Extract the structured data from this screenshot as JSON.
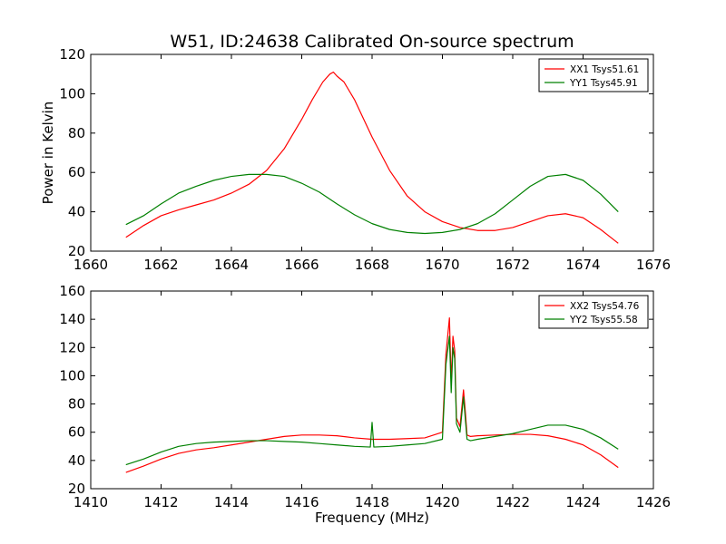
{
  "chart_data": [
    {
      "type": "line",
      "title": "W51, ID:24638 Calibrated On-source spectrum",
      "xlabel": "",
      "ylabel": "Power in Kelvin",
      "xlim": [
        1660,
        1676
      ],
      "ylim": [
        20,
        120
      ],
      "xticks": [
        1660,
        1662,
        1664,
        1666,
        1668,
        1670,
        1672,
        1674,
        1676
      ],
      "yticks": [
        20,
        40,
        60,
        80,
        100,
        120
      ],
      "legend_position": "top-right",
      "grid": false,
      "series": [
        {
          "name": "XX1 Tsys51.61",
          "color": "#ff0000",
          "x": [
            1661,
            1661.5,
            1662,
            1662.5,
            1663,
            1663.5,
            1664,
            1664.5,
            1665,
            1665.5,
            1666,
            1666.3,
            1666.6,
            1666.8,
            1666.9,
            1667,
            1667.2,
            1667.5,
            1668,
            1668.5,
            1669,
            1669.5,
            1670,
            1670.5,
            1671,
            1671.5,
            1672,
            1672.5,
            1673,
            1673.5,
            1674,
            1674.5,
            1675
          ],
          "y": [
            27,
            33,
            38,
            41,
            43.5,
            46,
            49.5,
            54,
            61,
            72,
            87,
            97,
            106,
            110,
            111,
            109,
            106,
            97,
            78,
            61,
            48,
            40,
            35,
            32,
            30.5,
            30.5,
            32,
            35,
            38,
            39,
            37,
            31,
            24
          ]
        },
        {
          "name": "YY1 Tsys45.91",
          "color": "#008000",
          "x": [
            1661,
            1661.5,
            1662,
            1662.5,
            1663,
            1663.5,
            1664,
            1664.5,
            1665,
            1665.5,
            1666,
            1666.5,
            1667,
            1667.5,
            1668,
            1668.5,
            1669,
            1669.5,
            1670,
            1670.5,
            1671,
            1671.5,
            1672,
            1672.5,
            1673,
            1673.5,
            1674,
            1674.5,
            1675
          ],
          "y": [
            33.5,
            38,
            44,
            49.5,
            53,
            56,
            58,
            59,
            59,
            58,
            54.5,
            50,
            44,
            38.5,
            34,
            31,
            29.5,
            29,
            29.5,
            31,
            34,
            39,
            46,
            53,
            58,
            59,
            56,
            49,
            40
          ]
        }
      ]
    },
    {
      "type": "line",
      "title": "",
      "xlabel": "Frequency (MHz)",
      "ylabel": "",
      "xlim": [
        1410,
        1426
      ],
      "ylim": [
        20,
        160
      ],
      "xticks": [
        1410,
        1412,
        1414,
        1416,
        1418,
        1420,
        1422,
        1424,
        1426
      ],
      "yticks": [
        20,
        40,
        60,
        80,
        100,
        120,
        140,
        160
      ],
      "legend_position": "top-right",
      "grid": false,
      "series": [
        {
          "name": "XX2 Tsys54.76",
          "color": "#ff0000",
          "x": [
            1411,
            1411.5,
            1412,
            1412.5,
            1413,
            1413.5,
            1414,
            1414.5,
            1415,
            1415.5,
            1416,
            1416.5,
            1417,
            1417.5,
            1418,
            1418.5,
            1419,
            1419.5,
            1420,
            1420.1,
            1420.2,
            1420.25,
            1420.3,
            1420.35,
            1420.4,
            1420.5,
            1420.6,
            1420.65,
            1420.7,
            1420.8,
            1421,
            1421.5,
            1422,
            1422.5,
            1423,
            1423.5,
            1424,
            1424.5,
            1425
          ],
          "y": [
            31.5,
            36,
            41,
            45,
            47.5,
            49,
            51,
            53,
            55,
            57,
            58,
            58,
            57.5,
            56,
            55,
            55,
            55.5,
            56,
            60,
            115,
            141,
            95,
            128,
            118,
            70,
            64,
            90,
            75,
            58,
            57,
            57.5,
            58,
            58.5,
            58.5,
            57.5,
            55,
            51,
            44,
            35
          ]
        },
        {
          "name": "YY2 Tsys55.58",
          "color": "#008000",
          "x": [
            1411,
            1411.5,
            1412,
            1412.5,
            1413,
            1413.5,
            1414,
            1414.5,
            1415,
            1415.5,
            1416,
            1416.5,
            1417,
            1417.5,
            1417.95,
            1418,
            1418.05,
            1418.5,
            1419,
            1419.5,
            1420,
            1420.1,
            1420.2,
            1420.25,
            1420.3,
            1420.35,
            1420.4,
            1420.5,
            1420.6,
            1420.65,
            1420.7,
            1420.8,
            1421,
            1421.5,
            1422,
            1422.5,
            1423,
            1423.5,
            1424,
            1424.5,
            1425
          ],
          "y": [
            37,
            41,
            46,
            50,
            52,
            53,
            53.5,
            54,
            54,
            53.5,
            53,
            52,
            51,
            50,
            49.5,
            67,
            49.5,
            50,
            51,
            52,
            55,
            108,
            128,
            88,
            120,
            112,
            66,
            60,
            85,
            70,
            55,
            54,
            55,
            57,
            59,
            62,
            65,
            65,
            62,
            56,
            48
          ]
        }
      ]
    }
  ]
}
